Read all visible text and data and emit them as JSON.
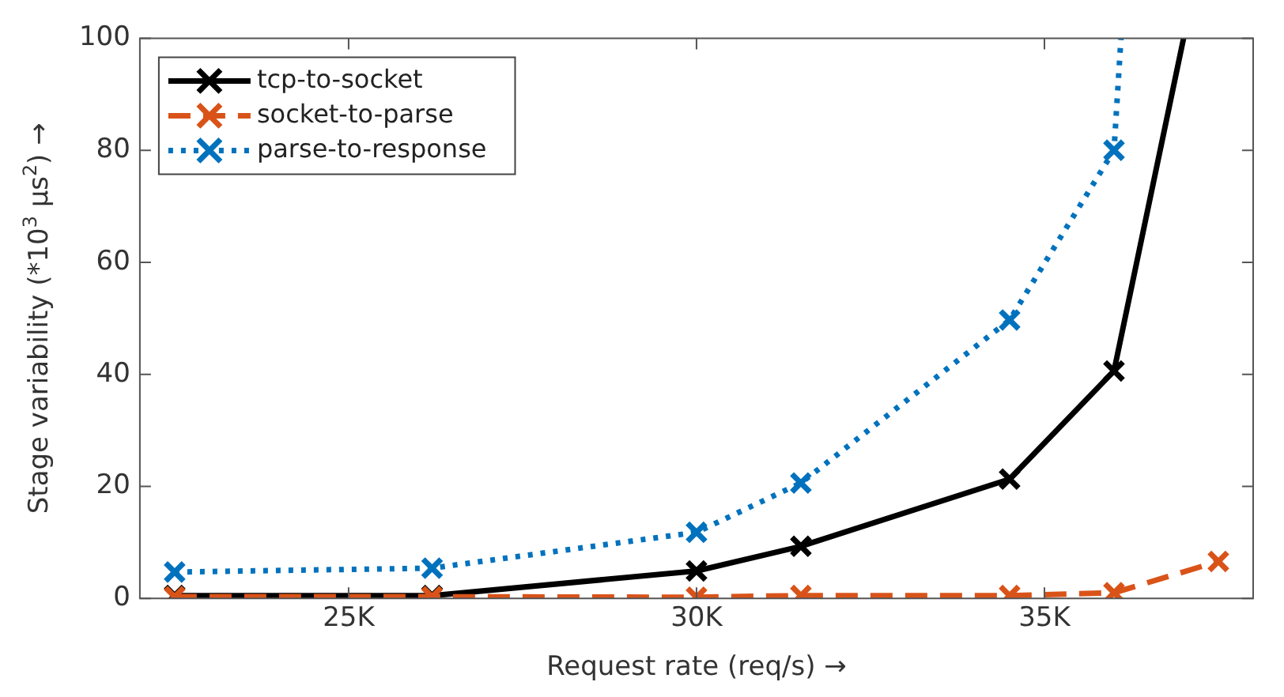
{
  "chart_data": {
    "type": "line",
    "xlabel": "Request rate (req/s) →",
    "ylabel": "Stage variability (*10$^{3}$ μs$^{2}$) →",
    "xlim": [
      22000,
      38000
    ],
    "xticks": [
      {
        "value": 25000,
        "label": "25K"
      },
      {
        "value": 30000,
        "label": "30K"
      },
      {
        "value": 35000,
        "label": "35K"
      }
    ],
    "ylim": [
      0,
      100
    ],
    "yticks": [
      0,
      20,
      40,
      60,
      80,
      100
    ],
    "grid": false,
    "legend": "top left",
    "marker": "cross",
    "series": [
      {
        "name": "tcp-to-socket",
        "color": "#000000",
        "line_style": "solid",
        "x": [
          22500,
          26200,
          30000,
          31500,
          34500,
          36000,
          37000
        ],
        "values": [
          0.5,
          0.5,
          4.9,
          9.3,
          21.3,
          40.6,
          100
        ]
      },
      {
        "name": "socket-to-parse",
        "color": "#d95319",
        "line_style": "dashed",
        "x": [
          22500,
          26200,
          30000,
          31500,
          34500,
          36000,
          37500
        ],
        "values": [
          0.3,
          0.3,
          0.2,
          0.5,
          0.5,
          1,
          6.6
        ]
      },
      {
        "name": "parse-to-response",
        "color": "#0072bd",
        "line_style": "dotted",
        "x": [
          22500,
          26200,
          30000,
          31500,
          34500,
          36000,
          36100
        ],
        "values": [
          4.7,
          5.4,
          11.8,
          20.6,
          49.7,
          80,
          100
        ]
      }
    ]
  }
}
